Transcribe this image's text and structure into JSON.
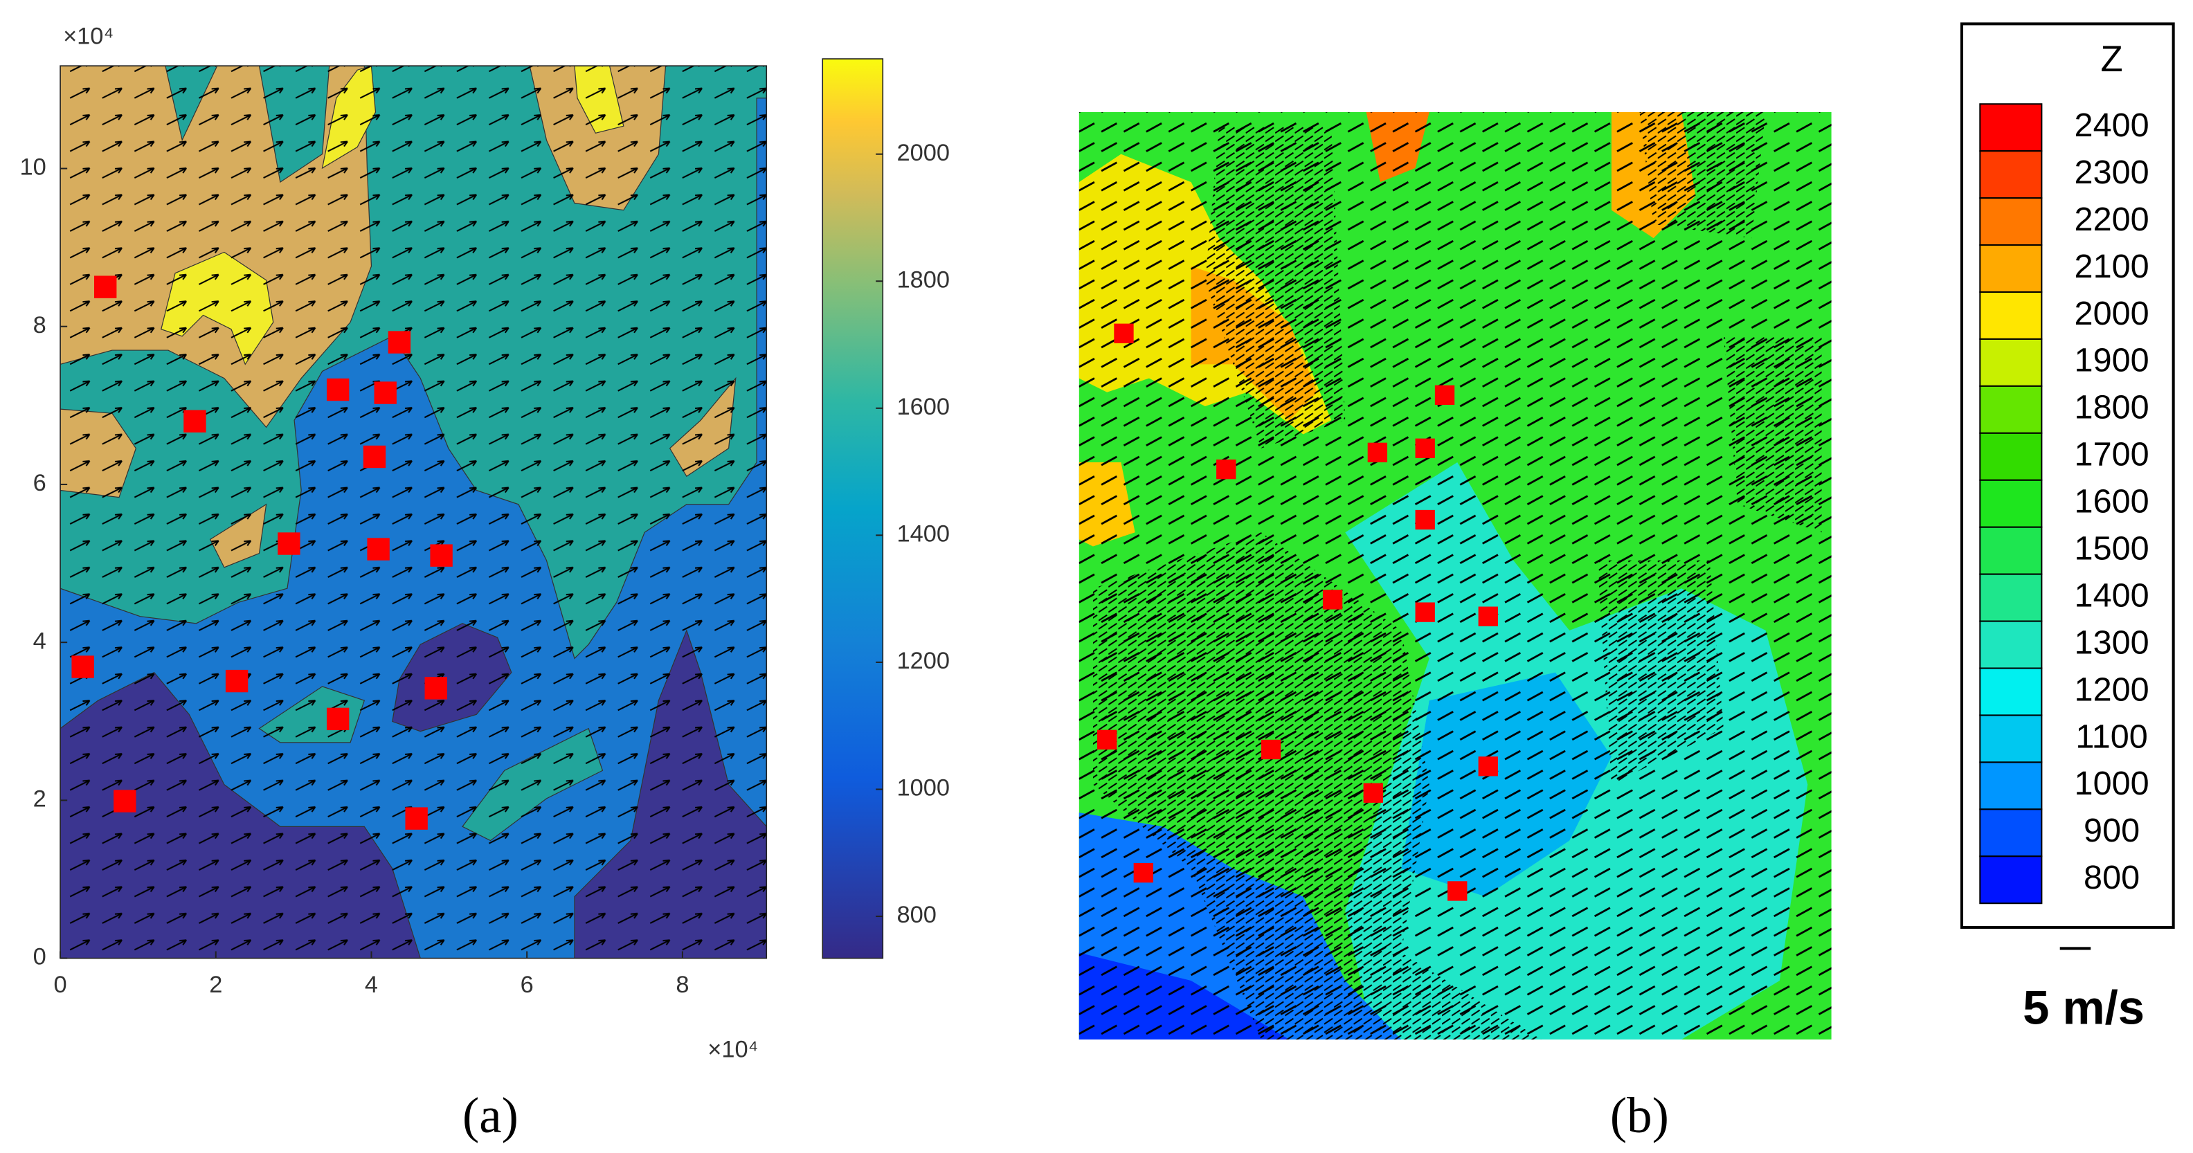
{
  "chart_data": [
    {
      "type": "contour",
      "y_exponent": "×10⁴",
      "x_exponent": "×10⁴",
      "xlim": [
        0,
        9.08
      ],
      "ylim": [
        0,
        11.3
      ],
      "xticks": [
        0,
        2,
        4,
        6,
        8
      ],
      "yticks": [
        0,
        2,
        4,
        6,
        8,
        10
      ],
      "clim": [
        734,
        2150
      ],
      "cticks": [
        800,
        1000,
        1200,
        1400,
        1600,
        1800,
        2000
      ],
      "stations": {
        "color": "#ff0000",
        "x": [
          0.58,
          1.73,
          4.36,
          3.57,
          4.18,
          4.04,
          2.94,
          4.09,
          4.9,
          0.29,
          2.27,
          4.83,
          3.57,
          0.83,
          4.58
        ],
        "y": [
          8.5,
          6.8,
          7.8,
          7.2,
          7.16,
          6.35,
          5.25,
          5.18,
          5.1,
          3.69,
          3.51,
          3.42,
          3.03,
          1.99,
          1.77
        ]
      },
      "label": "(a)"
    },
    {
      "type": "contour",
      "legend_title": "Z",
      "levels": [
        2400,
        2300,
        2200,
        2100,
        2000,
        1900,
        1800,
        1700,
        1600,
        1500,
        1400,
        1300,
        1200,
        1100,
        1000,
        900,
        800
      ],
      "level_colors": [
        "#ff0000",
        "#ff3c00",
        "#ff7800",
        "#ffaa00",
        "#ffe600",
        "#c8f000",
        "#64e600",
        "#32dc00",
        "#1ee61e",
        "#1ee650",
        "#1ee68c",
        "#1ee6be",
        "#00f0f0",
        "#00c8f0",
        "#0096ff",
        "#0050ff",
        "#0014ff"
      ],
      "scale_label": "5 m/s",
      "label": "(b)"
    }
  ]
}
